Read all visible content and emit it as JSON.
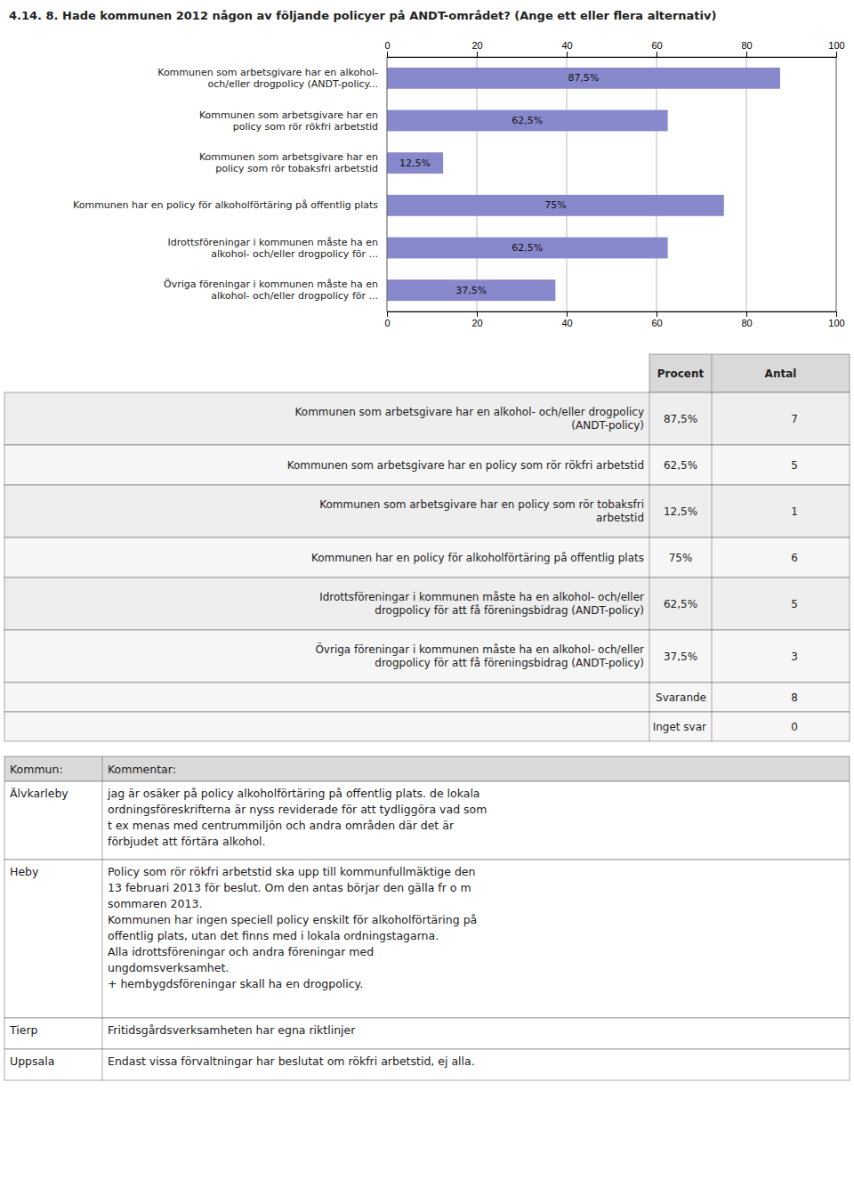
{
  "chart_data": {
    "type": "bar",
    "orientation": "horizontal",
    "title": "4.14. 8. Hade kommunen 2012 någon av följande policyer på ANDT-området? (Ange ett eller flera alternativ)",
    "categories": [
      "Kommunen som arbetsgivare har en alkohol-\noch/eller drogpolicy (ANDT-policy...",
      "Kommunen som arbetsgivare har en\npolicy som rör rökfri arbetstid",
      "Kommunen som arbetsgivare har en\npolicy som rör tobaksfri arbetstid",
      "Kommunen har en policy för alkoholförtäring på offentlig plats",
      "Idrottsföreningar i kommunen måste ha en\nalkohol- och/eller drogpolicy för ...",
      "Övriga föreningar i kommunen måste ha en\nalkohol- och/eller drogpolicy för ..."
    ],
    "values": [
      87.5,
      62.5,
      12.5,
      75.0,
      62.5,
      37.5
    ],
    "value_labels": [
      "87,5%",
      "62,5%",
      "12,5%",
      "75%",
      "62,5%",
      "37,5%"
    ],
    "data_labels": true,
    "color": "#8888cc",
    "xlim": [
      0,
      100
    ],
    "xticks": [
      0,
      20,
      40,
      60,
      80,
      100
    ],
    "grid": true
  },
  "table": {
    "columns": [
      "Procent",
      "Antal"
    ],
    "rows": [
      {
        "label": "Kommunen som arbetsgivare har en alkohol- och/eller drogpolicy\n(ANDT-policy)",
        "percent": "87,5%",
        "count": 7
      },
      {
        "label": "Kommunen som arbetsgivare har en policy som rör rökfri arbetstid",
        "percent": "62,5%",
        "count": 5
      },
      {
        "label": "Kommunen som arbetsgivare har en policy som rör tobaksfri\narbetstid",
        "percent": "12,5%",
        "count": 1
      },
      {
        "label": "Kommunen har en policy för alkoholförtäring på offentlig plats",
        "percent": "75%",
        "count": 6
      },
      {
        "label": "Idrottsföreningar i kommunen måste ha en alkohol- och/eller\ndrogpolicy för att få föreningsbidrag (ANDT-policy)",
        "percent": "62,5%",
        "count": 5
      },
      {
        "label": "Övriga föreningar i kommunen måste ha en alkohol- och/eller\ndrogpolicy för att få föreningsbidrag (ANDT-policy)",
        "percent": "37,5%",
        "count": 3
      },
      {
        "label": "Svarande",
        "count": 8
      },
      {
        "label": "Inget svar",
        "count": 0
      }
    ]
  },
  "comments": {
    "columns": [
      "Kommun:",
      "Kommentar:"
    ],
    "rows": [
      {
        "kommun": "Älvkarleby",
        "comment": "jag är osäker på policy alkoholförtäring på offentlig plats. de lokala\nordningsföreskrifterna är nyss reviderade för att tydliggöra vad som\nt ex menas med centrummiljön och andra områden där det är\nförbjudet att förtära alkohol."
      },
      {
        "kommun": "Heby",
        "comment": "Policy som rör rökfri arbetstid ska upp till kommunfullmäktige den\n13 februari 2013 för beslut. Om den antas börjar den gälla fr o m\nsommaren 2013.\nKommunen har ingen speciell policy enskilt för alkoholförtäring på\noffentlig plats, utan det finns med i lokala ordningstagarna.\nAlla idrottsföreningar och andra föreningar med\nungdomsverksamhet.\n\n+ hembygdsföreningar skall ha en drogpolicy."
      },
      {
        "kommun": "Tierp",
        "comment": "Fritidsgårdsverksamheten har egna riktlinjer"
      },
      {
        "kommun": "Uppsala",
        "comment": "Endast vissa förvaltningar har beslutat om rökfri arbetstid, ej alla."
      }
    ]
  }
}
